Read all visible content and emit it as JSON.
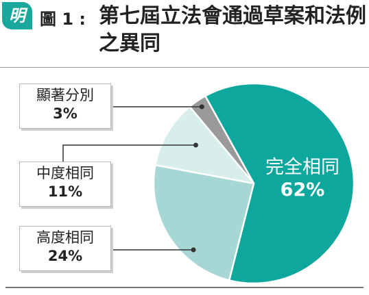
{
  "header": {
    "logo_text": "明",
    "figure_label": "圖 1 :",
    "title": "第七屆立法會通過草案和法例之異同"
  },
  "chart_data": {
    "type": "pie",
    "title": "第七屆立法會通過草案和法例之異同",
    "slices": [
      {
        "label": "完全相同",
        "value_label": "62%",
        "value": 62,
        "color": "#0ea79d",
        "text_color": "#ffffff"
      },
      {
        "label": "高度相同",
        "value_label": "24%",
        "value": 24,
        "color": "#a6d7d4",
        "text_color": "#222222"
      },
      {
        "label": "中度相同",
        "value_label": "11%",
        "value": 11,
        "color": "#d8eeec",
        "text_color": "#222222"
      },
      {
        "label": "顯著分別",
        "value_label": "3%",
        "value": 3,
        "color": "#9a9a9a",
        "text_color": "#222222"
      }
    ],
    "legend": "callout boxes on left"
  },
  "colors": {
    "accent": "#1aa79c",
    "leader_line": "#333333",
    "rule": "#9a9a9a"
  }
}
